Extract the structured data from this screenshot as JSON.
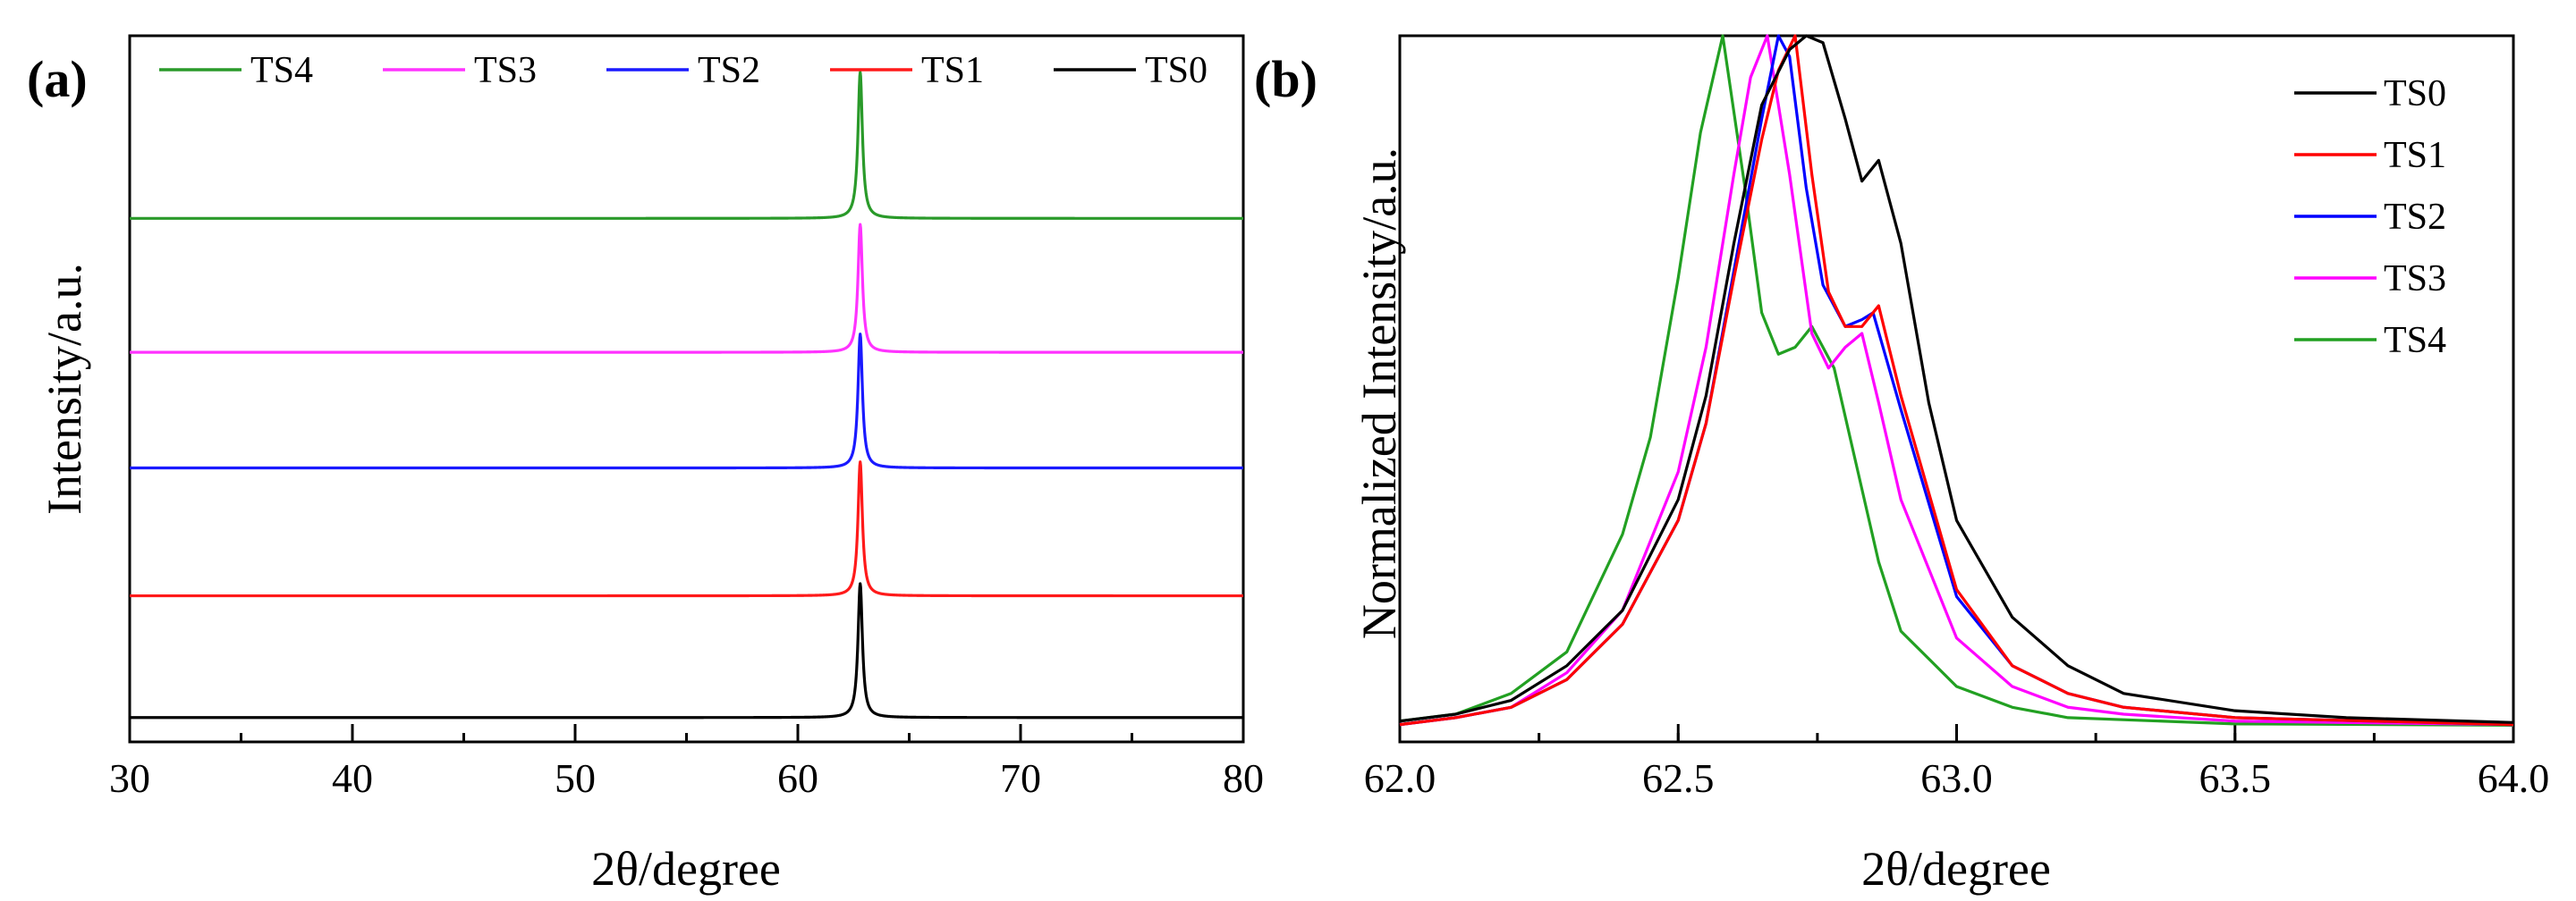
{
  "figure": {
    "panel_a_label": "(a)",
    "panel_b_label": "(b)"
  },
  "chart_data": [
    {
      "panel": "(a)",
      "type": "line",
      "title": "",
      "xlabel": "2θ/degree",
      "ylabel": "Intensity/a.u.",
      "xlim": [
        30,
        80
      ],
      "ylim": [
        0,
        5.8
      ],
      "xticks": [
        30,
        40,
        50,
        60,
        70,
        80
      ],
      "x_minor_step": 5,
      "y_ticks_shown": false,
      "legend": {
        "placement": "top",
        "entries": [
          "TS4",
          "TS3",
          "TS2",
          "TS1",
          "TS0"
        ]
      },
      "peak_center": 62.8,
      "peak_width": 0.12,
      "series": [
        {
          "name": "TS4",
          "color": "#2a9a2a",
          "offset": 4.3,
          "peak_height": 1.2
        },
        {
          "name": "TS3",
          "color": "#ff33ff",
          "offset": 3.2,
          "peak_height": 1.05
        },
        {
          "name": "TS2",
          "color": "#1a1aff",
          "offset": 2.25,
          "peak_height": 1.1
        },
        {
          "name": "TS1",
          "color": "#ff1a1a",
          "offset": 1.2,
          "peak_height": 1.1
        },
        {
          "name": "TS0",
          "color": "#000000",
          "offset": 0.2,
          "peak_height": 1.1
        }
      ]
    },
    {
      "panel": "(b)",
      "type": "line",
      "title": "",
      "xlabel": "2θ/degree",
      "ylabel": "Normalized Intensity/a.u.",
      "xlim": [
        62.0,
        64.0
      ],
      "ylim": [
        -0.02,
        1.0
      ],
      "xticks": [
        62.0,
        62.5,
        63.0,
        63.5,
        64.0
      ],
      "xtick_labels": [
        "62.0",
        "62.5",
        "63.0",
        "63.5",
        "64.0"
      ],
      "x_minor_step": 0.25,
      "y_ticks_shown": false,
      "legend": {
        "placement": "top-right",
        "entries": [
          "TS0",
          "TS1",
          "TS2",
          "TS3",
          "TS4"
        ]
      },
      "series": [
        {
          "name": "TS0",
          "color": "#000000",
          "x": [
            62.0,
            62.1,
            62.2,
            62.3,
            62.4,
            62.5,
            62.55,
            62.6,
            62.65,
            62.7,
            62.73,
            62.76,
            62.8,
            62.83,
            62.86,
            62.9,
            62.95,
            63.0,
            63.1,
            63.2,
            63.3,
            63.5,
            63.7,
            64.0
          ],
          "y": [
            0.01,
            0.02,
            0.04,
            0.09,
            0.17,
            0.33,
            0.48,
            0.7,
            0.9,
            0.98,
            1.0,
            0.99,
            0.88,
            0.79,
            0.82,
            0.7,
            0.47,
            0.3,
            0.16,
            0.09,
            0.05,
            0.025,
            0.015,
            0.008
          ]
        },
        {
          "name": "TS1",
          "color": "#ff0000",
          "x": [
            62.0,
            62.1,
            62.2,
            62.3,
            62.4,
            62.5,
            62.55,
            62.6,
            62.65,
            62.68,
            62.71,
            62.74,
            62.77,
            62.8,
            62.83,
            62.86,
            62.9,
            63.0,
            63.1,
            63.2,
            63.3,
            63.5,
            64.0
          ],
          "y": [
            0.005,
            0.015,
            0.03,
            0.07,
            0.15,
            0.3,
            0.44,
            0.65,
            0.85,
            0.95,
            1.0,
            0.8,
            0.63,
            0.58,
            0.58,
            0.61,
            0.48,
            0.2,
            0.09,
            0.05,
            0.03,
            0.015,
            0.005
          ]
        },
        {
          "name": "TS2",
          "color": "#0000ff",
          "x": [
            62.0,
            62.1,
            62.2,
            62.3,
            62.4,
            62.5,
            62.55,
            62.6,
            62.65,
            62.68,
            62.7,
            62.73,
            62.76,
            62.8,
            62.83,
            62.85,
            62.9,
            63.0,
            63.1,
            63.2,
            63.3,
            63.5,
            64.0
          ],
          "y": [
            0.005,
            0.015,
            0.03,
            0.07,
            0.15,
            0.3,
            0.44,
            0.66,
            0.88,
            1.0,
            0.97,
            0.78,
            0.64,
            0.58,
            0.59,
            0.6,
            0.46,
            0.19,
            0.09,
            0.05,
            0.03,
            0.015,
            0.005
          ]
        },
        {
          "name": "TS3",
          "color": "#ff00ff",
          "x": [
            62.0,
            62.1,
            62.2,
            62.3,
            62.4,
            62.5,
            62.55,
            62.6,
            62.63,
            62.66,
            62.7,
            62.74,
            62.77,
            62.8,
            62.83,
            62.86,
            62.9,
            63.0,
            63.1,
            63.2,
            63.3,
            63.5,
            64.0
          ],
          "y": [
            0.005,
            0.015,
            0.03,
            0.08,
            0.17,
            0.37,
            0.55,
            0.8,
            0.94,
            1.0,
            0.8,
            0.57,
            0.52,
            0.55,
            0.57,
            0.47,
            0.33,
            0.13,
            0.06,
            0.03,
            0.02,
            0.01,
            0.005
          ]
        },
        {
          "name": "TS4",
          "color": "#22a022",
          "x": [
            62.0,
            62.1,
            62.2,
            62.3,
            62.4,
            62.45,
            62.5,
            62.54,
            62.58,
            62.62,
            62.65,
            62.68,
            62.71,
            62.74,
            62.78,
            62.82,
            62.86,
            62.9,
            63.0,
            63.1,
            63.2,
            63.5,
            64.0
          ],
          "y": [
            0.01,
            0.02,
            0.05,
            0.11,
            0.28,
            0.42,
            0.65,
            0.86,
            1.0,
            0.78,
            0.6,
            0.54,
            0.55,
            0.58,
            0.52,
            0.38,
            0.24,
            0.14,
            0.06,
            0.03,
            0.015,
            0.006,
            0.004
          ]
        }
      ]
    }
  ]
}
